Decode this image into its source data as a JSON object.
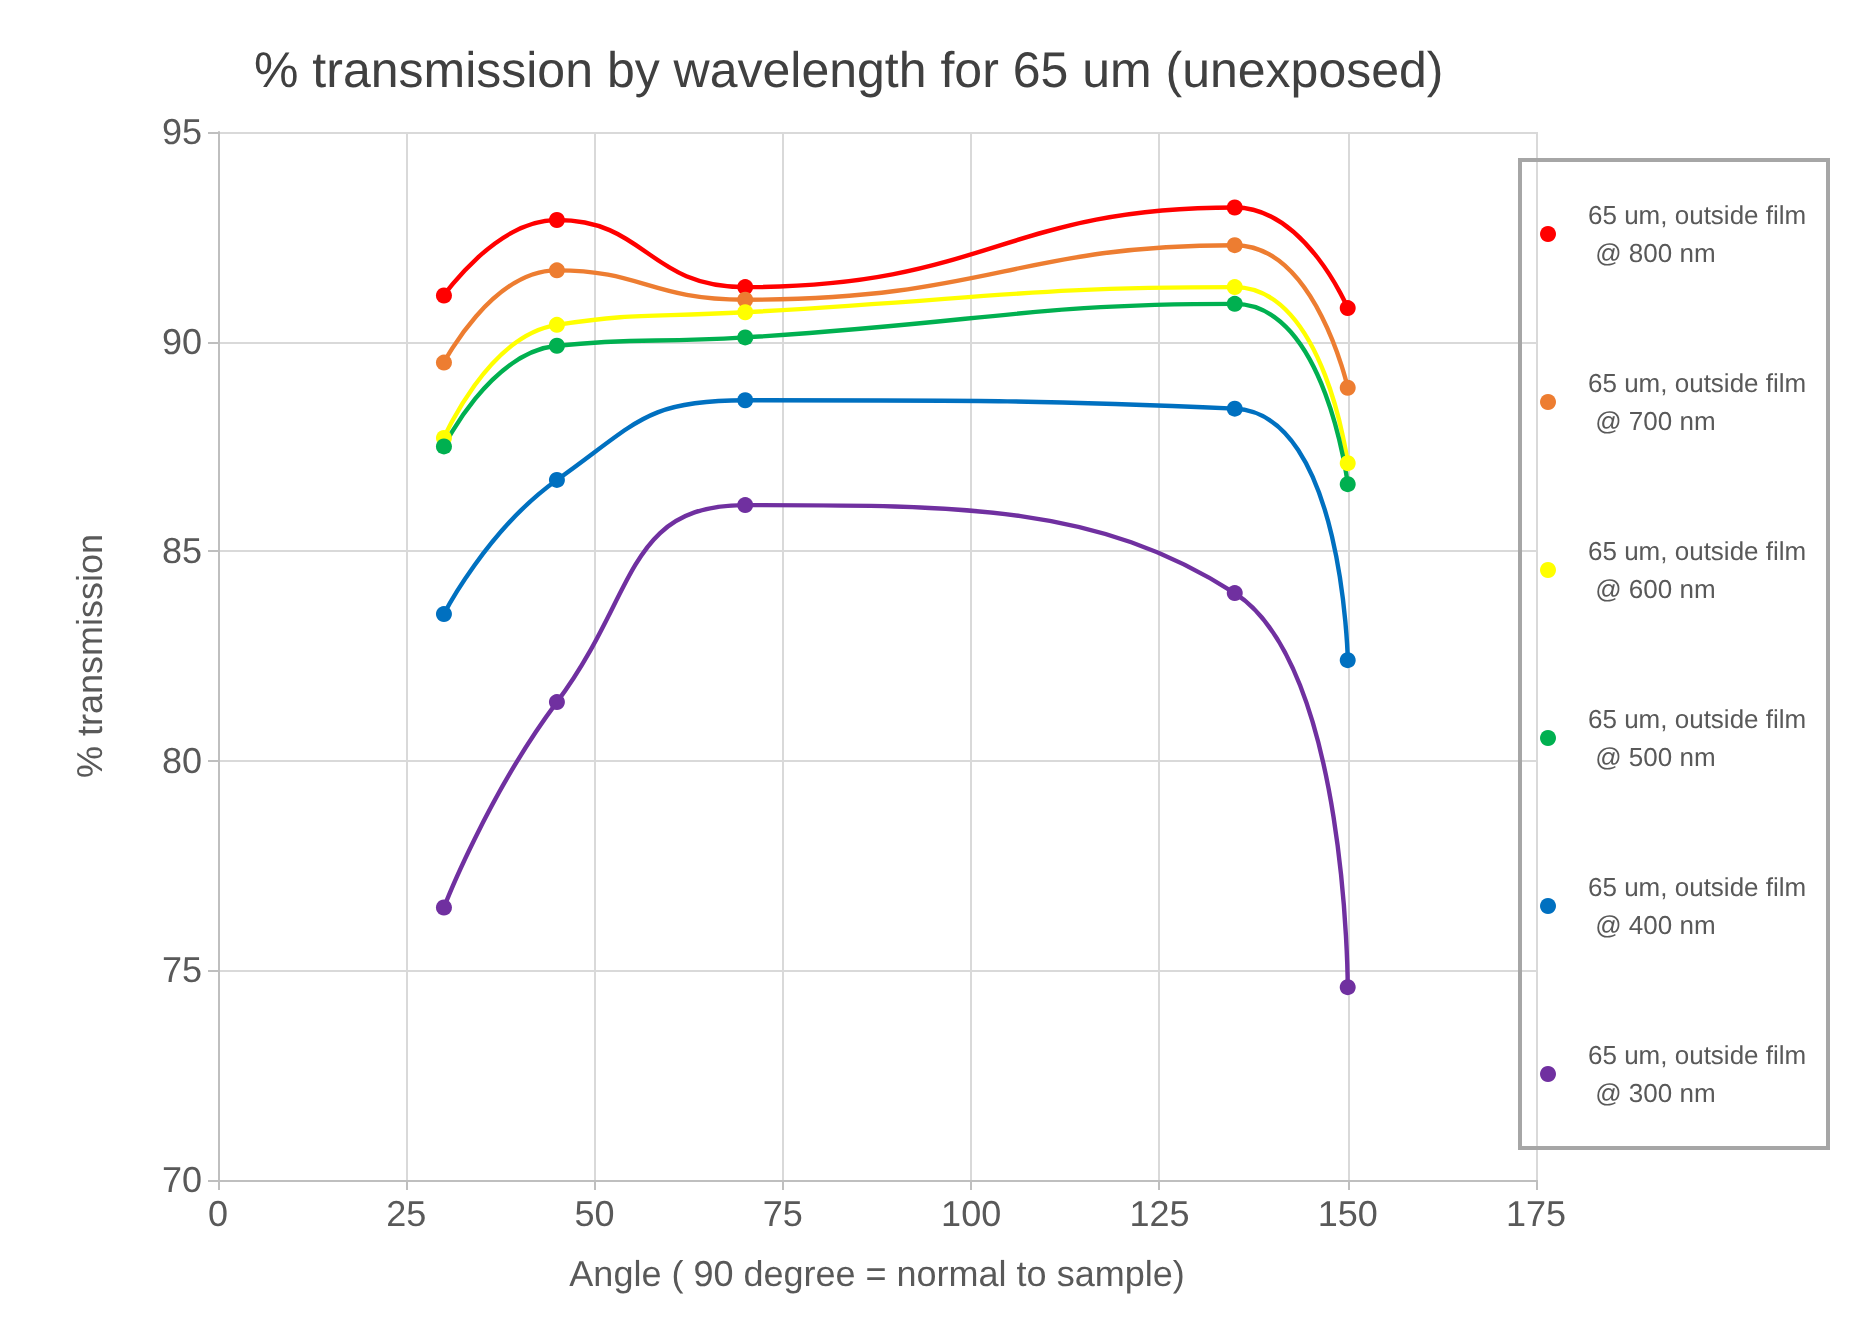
{
  "chart_data": {
    "type": "line",
    "title": "% transmission by wavelength for 65 um (unexposed)",
    "xlabel": "Angle ( 90 degree = normal to sample)",
    "ylabel": "% transmission",
    "x": [
      30,
      45,
      70,
      135,
      150
    ],
    "series": [
      {
        "name": "65 um, outside film @ 800 nm",
        "color": "#ff0000",
        "values": [
          91.1,
          92.9,
          91.3,
          93.2,
          90.8
        ]
      },
      {
        "name": "65 um, outside film @ 700 nm",
        "color": "#ed7d31",
        "values": [
          89.5,
          91.7,
          91.0,
          92.3,
          88.9
        ]
      },
      {
        "name": "65 um, outside film @ 600 nm",
        "color": "#ffff00",
        "values": [
          87.7,
          90.4,
          90.7,
          91.3,
          87.1
        ]
      },
      {
        "name": "65 um, outside film @ 500 nm",
        "color": "#00b050",
        "values": [
          87.5,
          89.9,
          90.1,
          90.9,
          86.6
        ]
      },
      {
        "name": "65 um, outside film @ 400 nm",
        "color": "#0070c0",
        "values": [
          83.5,
          86.7,
          88.6,
          88.4,
          82.4
        ]
      },
      {
        "name": "65 um, outside film @ 300 nm",
        "color": "#7030a0",
        "values": [
          76.5,
          81.4,
          86.1,
          84.0,
          74.6
        ]
      }
    ],
    "xlim": [
      0,
      175
    ],
    "xticks": [
      0,
      25,
      50,
      75,
      100,
      125,
      150,
      175
    ],
    "ylim": [
      70,
      95
    ],
    "yticks": [
      70,
      75,
      80,
      85,
      90,
      95
    ],
    "grid": true,
    "legend": "right",
    "marker": "circle",
    "line_style": "solid"
  }
}
